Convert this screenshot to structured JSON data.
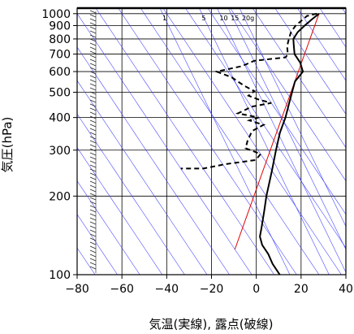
{
  "chart_data": {
    "type": "line",
    "chart_kind": "skew-T log-P aerological diagram",
    "xlabel": "気温(実線), 露点(破線)",
    "ylabel": "気圧(hPa)",
    "x_unit": "°C",
    "y_unit": "hPa",
    "xlim": [
      -80,
      40
    ],
    "ylim": [
      1050,
      100
    ],
    "y_scale": "log",
    "x_ticks": [
      -80,
      -60,
      -40,
      -20,
      0,
      20,
      40
    ],
    "y_ticks": [
      100,
      200,
      300,
      400,
      500,
      600,
      700,
      800,
      900,
      1000
    ],
    "grid": true,
    "colors": {
      "temperature": "#000000",
      "dewpoint": "#000000",
      "reference_line": "#e00000",
      "skewed_isotherms": "#3a3aff",
      "mixing_ratio_lines": "#3a3aff",
      "grid": "#000000"
    },
    "mixing_ratio_labels": [
      {
        "text": "1",
        "temp_at_top": -43
      },
      {
        "text": "5",
        "temp_at_top": -25.5
      },
      {
        "text": "10",
        "temp_at_top": -17.5
      },
      {
        "text": "15",
        "temp_at_top": -12.5
      },
      {
        "text": "20g",
        "temp_at_top": -7.5
      }
    ],
    "series": [
      {
        "style": "solid",
        "points": [
          {
            "t": 28,
            "p": 1000
          },
          {
            "t": 23,
            "p": 950
          },
          {
            "t": 18,
            "p": 900
          },
          {
            "t": 13,
            "p": 850
          },
          {
            "t": 9,
            "p": 800
          },
          {
            "t": 7,
            "p": 750
          },
          {
            "t": 5,
            "p": 700
          },
          {
            "t": 5,
            "p": 650
          },
          {
            "t": 3.5,
            "p": 600
          },
          {
            "t": -3,
            "p": 550
          },
          {
            "t": -7.5,
            "p": 500
          },
          {
            "t": -12.5,
            "p": 450
          },
          {
            "t": -18,
            "p": 400
          },
          {
            "t": -25,
            "p": 350
          },
          {
            "t": -32,
            "p": 300
          },
          {
            "t": -40,
            "p": 250
          },
          {
            "t": -50,
            "p": 200
          },
          {
            "t": -55.5,
            "p": 175
          },
          {
            "t": -62,
            "p": 150
          },
          {
            "t": -65,
            "p": 140
          },
          {
            "t": -66.5,
            "p": 130
          },
          {
            "t": -66.5,
            "p": 120
          },
          {
            "t": -67.5,
            "p": 110
          },
          {
            "t": -67.5,
            "p": 100
          }
        ]
      },
      {
        "style": "dashed",
        "points": [
          {
            "t": 27,
            "p": 1000
          },
          {
            "t": 22,
            "p": 980
          },
          {
            "t": 19,
            "p": 950
          },
          {
            "t": 14,
            "p": 900
          },
          {
            "t": 10,
            "p": 850
          },
          {
            "t": 7,
            "p": 800
          },
          {
            "t": 4,
            "p": 750
          },
          {
            "t": 2,
            "p": 700
          },
          {
            "t": 0,
            "p": 680
          },
          {
            "t": -15,
            "p": 660
          },
          {
            "t": -22,
            "p": 630
          },
          {
            "t": -35,
            "p": 600
          },
          {
            "t": -30,
            "p": 570
          },
          {
            "t": -27,
            "p": 530
          },
          {
            "t": -24,
            "p": 505
          },
          {
            "t": -28,
            "p": 485
          },
          {
            "t": -25,
            "p": 470
          },
          {
            "t": -20,
            "p": 455
          },
          {
            "t": -30,
            "p": 440
          },
          {
            "t": -33,
            "p": 430
          },
          {
            "t": -38,
            "p": 415
          },
          {
            "t": -30,
            "p": 400
          },
          {
            "t": -35,
            "p": 390
          },
          {
            "t": -30,
            "p": 375
          },
          {
            "t": -37,
            "p": 355
          },
          {
            "t": -42,
            "p": 325
          },
          {
            "t": -45,
            "p": 305
          },
          {
            "t": -40,
            "p": 290
          },
          {
            "t": -44,
            "p": 275
          },
          {
            "t": -59,
            "p": 265
          },
          {
            "t": -70,
            "p": 255
          },
          {
            "t": -80,
            "p": 255
          }
        ]
      }
    ]
  }
}
